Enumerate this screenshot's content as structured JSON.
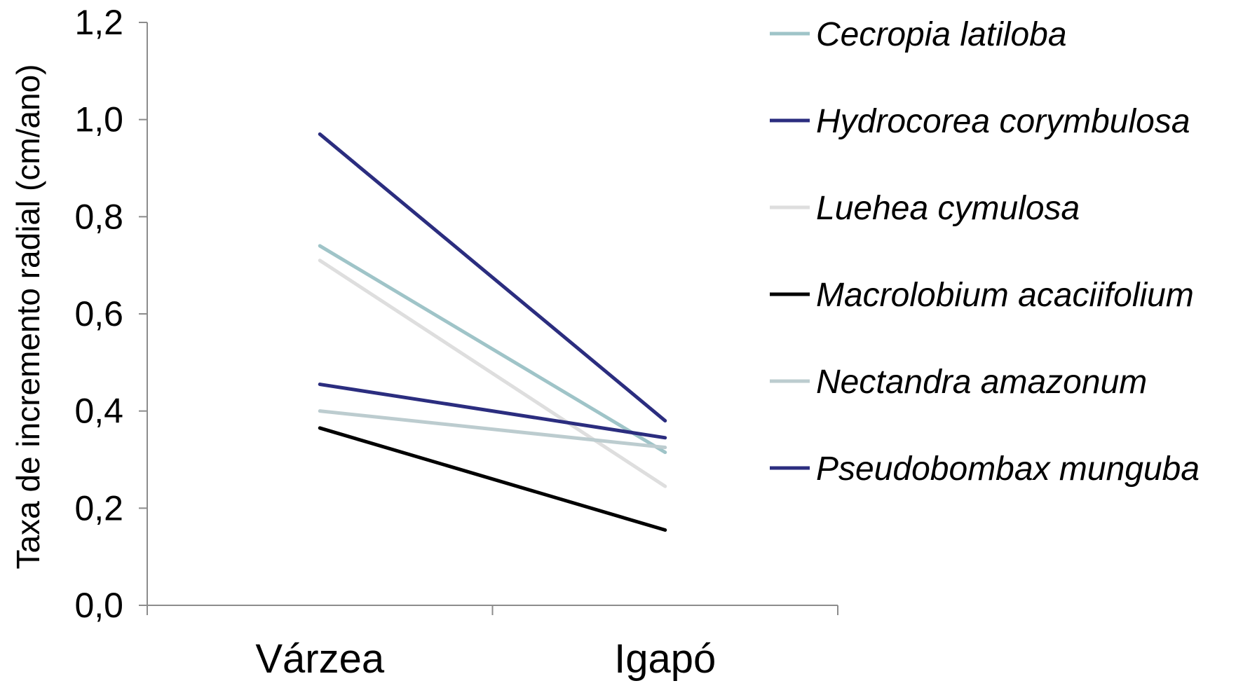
{
  "chart_data": {
    "type": "line",
    "title": "",
    "ylabel": "Taxa de incremento radial (cm/ano)",
    "xlabel": "",
    "categories": [
      "Várzea",
      "Igapó"
    ],
    "ylim": [
      0,
      1.2
    ],
    "yticks": [
      "0,0",
      "0,2",
      "0,4",
      "0,6",
      "0,8",
      "1,0",
      "1,2"
    ],
    "ytick_values": [
      0,
      0.2,
      0.4,
      0.6,
      0.8,
      1.0,
      1.2
    ],
    "grid": false,
    "legend_position": "right",
    "series": [
      {
        "name": "Cecropia latiloba",
        "color": "#9fc4c8",
        "values": [
          0.74,
          0.315
        ]
      },
      {
        "name": "Hydrocorea corymbulosa",
        "color": "#2b2d7f",
        "values": [
          0.97,
          0.38
        ]
      },
      {
        "name": "Luehea cymulosa",
        "color": "#dedede",
        "values": [
          0.71,
          0.245
        ]
      },
      {
        "name": "Macrolobium acaciifolium",
        "color": "#000000",
        "values": [
          0.365,
          0.155
        ]
      },
      {
        "name": "Nectandra amazonum",
        "color": "#bccccf",
        "values": [
          0.4,
          0.325
        ]
      },
      {
        "name": "Pseudobombax munguba",
        "color": "#2b2d7f",
        "values": [
          0.455,
          0.345
        ]
      }
    ]
  }
}
